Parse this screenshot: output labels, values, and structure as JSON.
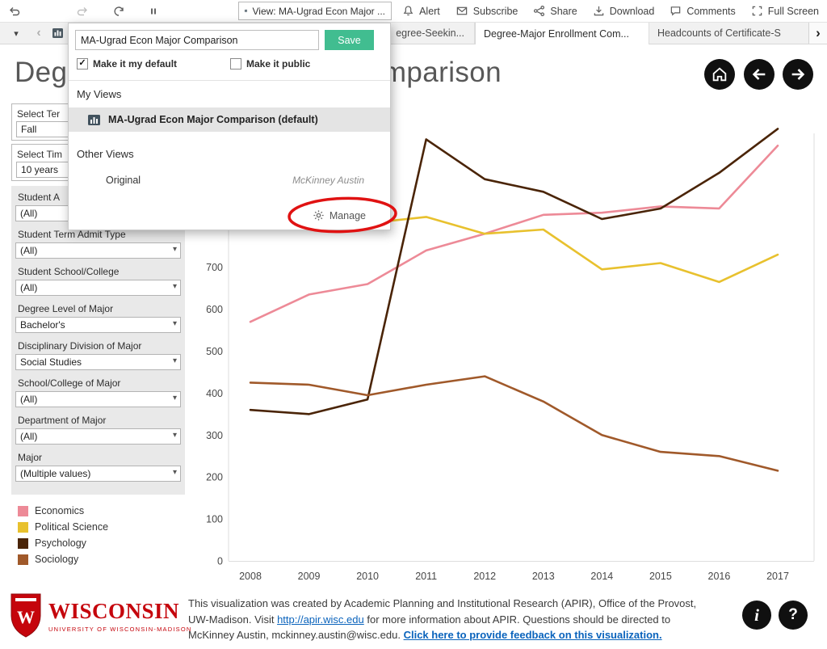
{
  "colors": {
    "save_green": "#41bd90",
    "uw_red": "#c5050c",
    "annotation_red": "#e01212"
  },
  "toolbar": {
    "view_button": "View: MA-Ugrad Econ Major ...",
    "items": [
      {
        "label": "Alert",
        "icon": "bell-icon"
      },
      {
        "label": "Subscribe",
        "icon": "envelope-icon"
      },
      {
        "label": "Share",
        "icon": "share-icon"
      },
      {
        "label": "Download",
        "icon": "download-icon"
      },
      {
        "label": "Comments",
        "icon": "comment-icon"
      },
      {
        "label": "Full Screen",
        "icon": "fullscreen-icon"
      }
    ]
  },
  "tabs": {
    "tab1": "egree-Seekin...",
    "tab2": "Degree-Major Enrollment Com...",
    "tab3": "Headcounts of Certificate-S"
  },
  "popup": {
    "name_input": "MA-Ugrad Econ Major Comparison",
    "save_label": "Save",
    "make_default_label": "Make it my default",
    "make_default_checked": true,
    "make_public_label": "Make it public",
    "make_public_checked": false,
    "my_views_heading": "My Views",
    "default_view_label": "MA-Ugrad Econ Major Comparison (default)",
    "other_views_heading": "Other Views",
    "original_label": "Original",
    "original_author": "McKinney Austin",
    "manage_label": "Manage"
  },
  "page": {
    "title": "Degree-Major Enrollment Comparison"
  },
  "filters": [
    {
      "label": "Select Ter",
      "value": "Fall"
    },
    {
      "label": "Select Tim",
      "value": "10 years"
    },
    {
      "label": "Student A",
      "value": "(All)"
    },
    {
      "label": "Student Term Admit Type",
      "value": "(All)"
    },
    {
      "label": "Student School/College",
      "value": "(All)"
    },
    {
      "label": "Degree Level of Major",
      "value": "Bachelor's"
    },
    {
      "label": "Disciplinary Division of Major",
      "value": "Social Studies"
    },
    {
      "label": "School/College of Major",
      "value": "(All)"
    },
    {
      "label": "Department of Major",
      "value": "(All)"
    },
    {
      "label": "Major",
      "value": "(Multiple values)"
    }
  ],
  "chart_data": {
    "type": "line",
    "title": "Degree-Major Enrollment Comparison",
    "x": [
      2008,
      2009,
      2010,
      2011,
      2012,
      2013,
      2014,
      2015,
      2016,
      2017
    ],
    "series": [
      {
        "name": "Economics",
        "color": "#ed8a97",
        "values": [
          570,
          635,
          660,
          740,
          780,
          825,
          830,
          845,
          840,
          990
        ]
      },
      {
        "name": "Political Science",
        "color": "#e8c12e",
        "values": [
          810,
          800,
          805,
          820,
          780,
          790,
          695,
          710,
          665,
          730
        ]
      },
      {
        "name": "Psychology",
        "color": "#4a2407",
        "values": [
          360,
          350,
          385,
          1005,
          910,
          880,
          815,
          840,
          925,
          1030
        ]
      },
      {
        "name": "Sociology",
        "color": "#a0592a",
        "values": [
          425,
          420,
          395,
          420,
          440,
          380,
          300,
          260,
          250,
          215
        ]
      }
    ],
    "xlabel": "",
    "ylabel": "",
    "ylim": [
      0,
      1060
    ],
    "yticks_labeled": [
      0,
      100,
      200,
      300,
      400,
      500,
      600,
      700
    ],
    "grid": false,
    "legend_position": "left"
  },
  "footer": {
    "line1": "This visualization was created by Academic Planning and Institutional Research (APIR), Office of the Provost,",
    "line2_pre": "UW-Madison. Visit ",
    "line2_link": "http://apir.wisc.edu",
    "line2_post": " for more information about APIR. Questions should be directed to",
    "line3_pre": "McKinney Austin, mckinney.austin@wisc.edu. ",
    "line3_link": "Click here to provide feedback on this visualization."
  },
  "logo": {
    "title": "WISCONSIN",
    "subtitle": "UNIVERSITY OF WISCONSIN-MADISON"
  },
  "icons": {
    "dropdown_caret": "▾",
    "tab_list_caret": "▾",
    "tab_prev": "‹",
    "tab_next": "›",
    "check": "✓",
    "info": "i",
    "help": "?"
  }
}
